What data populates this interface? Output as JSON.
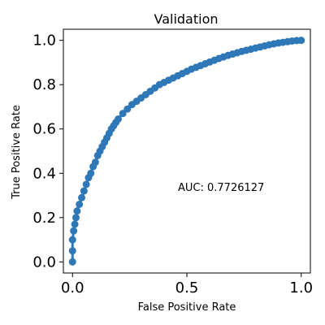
{
  "chart_data": {
    "type": "scatter",
    "title": "Validation",
    "xlabel": "False Positive Rate",
    "ylabel": "True Positive Rate",
    "xlim": [
      -0.04,
      1.04
    ],
    "ylim": [
      -0.05,
      1.05
    ],
    "xticks": [
      0.0,
      0.5,
      1.0
    ],
    "xtick_labels": [
      "0.0",
      "0.5",
      "1.0"
    ],
    "yticks": [
      0.0,
      0.2,
      0.4,
      0.6,
      0.8,
      1.0
    ],
    "ytick_labels": [
      "0.0",
      "0.2",
      "0.4",
      "0.6",
      "0.8",
      "1.0"
    ],
    "grid": false,
    "annotation": "AUC: 0.7726127",
    "series": [
      {
        "color": "#2f78b8",
        "style": "line-with-markers",
        "x": [
          0.0,
          0.0,
          0.0,
          0.005,
          0.01,
          0.015,
          0.02,
          0.03,
          0.04,
          0.05,
          0.06,
          0.07,
          0.08,
          0.09,
          0.1,
          0.11,
          0.12,
          0.13,
          0.14,
          0.15,
          0.16,
          0.17,
          0.18,
          0.19,
          0.2,
          0.22,
          0.24,
          0.26,
          0.28,
          0.3,
          0.32,
          0.34,
          0.36,
          0.38,
          0.4,
          0.42,
          0.44,
          0.46,
          0.48,
          0.5,
          0.52,
          0.54,
          0.56,
          0.58,
          0.6,
          0.62,
          0.64,
          0.66,
          0.68,
          0.7,
          0.72,
          0.74,
          0.76,
          0.78,
          0.8,
          0.82,
          0.84,
          0.86,
          0.88,
          0.9,
          0.92,
          0.94,
          0.96,
          0.98,
          1.0
        ],
        "y": [
          0.0,
          0.05,
          0.1,
          0.14,
          0.17,
          0.2,
          0.23,
          0.26,
          0.29,
          0.32,
          0.35,
          0.38,
          0.4,
          0.43,
          0.45,
          0.48,
          0.5,
          0.52,
          0.54,
          0.56,
          0.58,
          0.6,
          0.615,
          0.63,
          0.645,
          0.67,
          0.69,
          0.71,
          0.725,
          0.74,
          0.755,
          0.77,
          0.785,
          0.8,
          0.81,
          0.82,
          0.83,
          0.84,
          0.85,
          0.86,
          0.87,
          0.878,
          0.886,
          0.894,
          0.902,
          0.91,
          0.918,
          0.925,
          0.932,
          0.938,
          0.944,
          0.95,
          0.955,
          0.96,
          0.965,
          0.97,
          0.975,
          0.98,
          0.984,
          0.988,
          0.991,
          0.994,
          0.997,
          0.999,
          1.0
        ]
      }
    ]
  }
}
